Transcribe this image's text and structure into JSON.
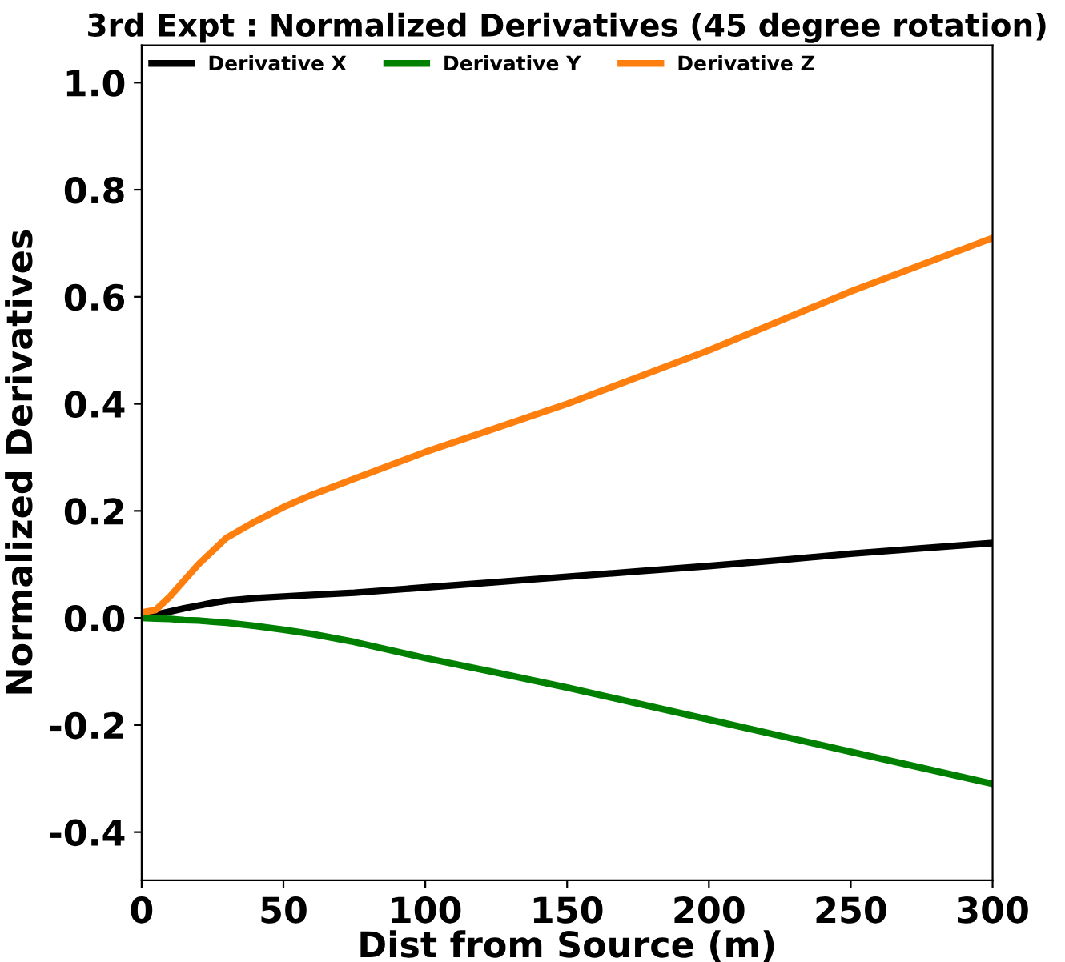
{
  "chart_data": {
    "type": "line",
    "title": "3rd Expt : Normalized Derivatives (45 degree rotation)",
    "xlabel": "Dist from Source (m)",
    "ylabel": "Normalized Derivatives",
    "x": [
      0,
      5,
      10,
      15,
      20,
      25,
      30,
      40,
      50,
      60,
      75,
      100,
      125,
      150,
      175,
      200,
      225,
      250,
      275,
      300
    ],
    "series": [
      {
        "name": "Derivative X",
        "color": "#000000",
        "values": [
          0,
          0.006,
          0.012,
          0.018,
          0.023,
          0.028,
          0.032,
          0.037,
          0.04,
          0.043,
          0.047,
          0.057,
          0.067,
          0.077,
          0.087,
          0.097,
          0.108,
          0.12,
          0.13,
          0.14
        ]
      },
      {
        "name": "Derivative Y",
        "color": "#008000",
        "values": [
          0,
          -0.001,
          -0.002,
          -0.004,
          -0.005,
          -0.007,
          -0.009,
          -0.015,
          -0.022,
          -0.03,
          -0.045,
          -0.075,
          -0.102,
          -0.13,
          -0.16,
          -0.19,
          -0.22,
          -0.25,
          -0.28,
          -0.31
        ]
      },
      {
        "name": "Derivative Z",
        "color": "#ff7f0e",
        "values": [
          0.01,
          0.015,
          0.04,
          0.07,
          0.1,
          0.125,
          0.15,
          0.18,
          0.207,
          0.23,
          0.26,
          0.31,
          0.355,
          0.4,
          0.45,
          0.5,
          0.555,
          0.61,
          0.66,
          0.71
        ]
      }
    ],
    "xlim": [
      0,
      300
    ],
    "xticks": [
      0,
      50,
      100,
      150,
      200,
      250,
      300
    ],
    "ylim": [
      -0.49,
      1.07
    ],
    "yticks": [
      -0.4,
      -0.2,
      {
        "value": 0,
        "label": "0.0"
      },
      0.2,
      0.4,
      0.6,
      0.8,
      {
        "value": 1,
        "label": "1.0"
      }
    ],
    "legend": "top left",
    "grid": false
  }
}
